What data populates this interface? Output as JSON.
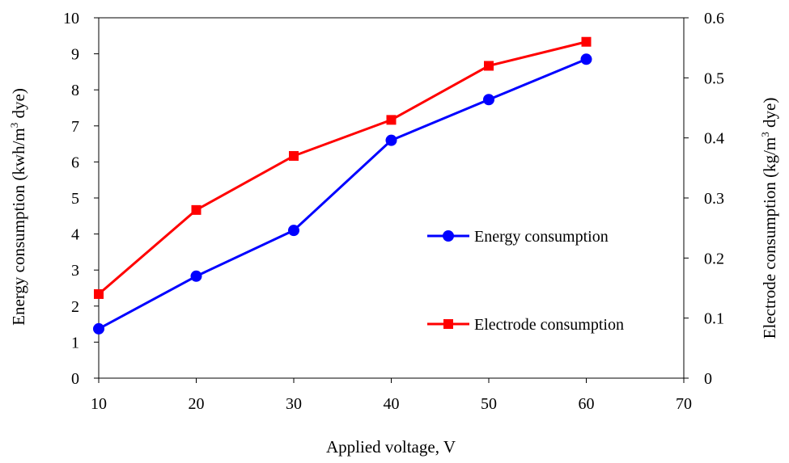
{
  "chart_data": {
    "type": "line",
    "x": [
      10,
      20,
      30,
      40,
      50,
      60
    ],
    "xlim": [
      10,
      70
    ],
    "xticks": [
      "10",
      "20",
      "30",
      "40",
      "50",
      "60",
      "70"
    ],
    "xlabel": "Applied voltage, V",
    "y_left": {
      "label_main": "Energy consumption (kwh/m",
      "label_sup": "3",
      "label_end": " dye)",
      "lim": [
        0,
        10
      ],
      "ticks": [
        "0",
        "1",
        "2",
        "3",
        "4",
        "5",
        "6",
        "7",
        "8",
        "9",
        "10"
      ]
    },
    "y_right": {
      "label_main": "Electrode consumption (kg/m",
      "label_sup": "3",
      "label_end": " dye)",
      "lim": [
        0,
        0.6
      ],
      "ticks": [
        "0",
        "0.1",
        "0.2",
        "0.3",
        "0.4",
        "0.5",
        "0.6"
      ]
    },
    "series": [
      {
        "name": "Energy consumption",
        "axis": "left",
        "color": "#0000ff",
        "marker": "circle",
        "values": [
          1.37,
          2.83,
          4.1,
          6.6,
          7.73,
          8.85
        ]
      },
      {
        "name": "Electrode consumption",
        "axis": "right",
        "color": "#ff0000",
        "marker": "square",
        "values": [
          0.14,
          0.28,
          0.37,
          0.43,
          0.52,
          0.56
        ]
      }
    ],
    "legend_position": "bottom-right inside plot",
    "grid": false
  }
}
